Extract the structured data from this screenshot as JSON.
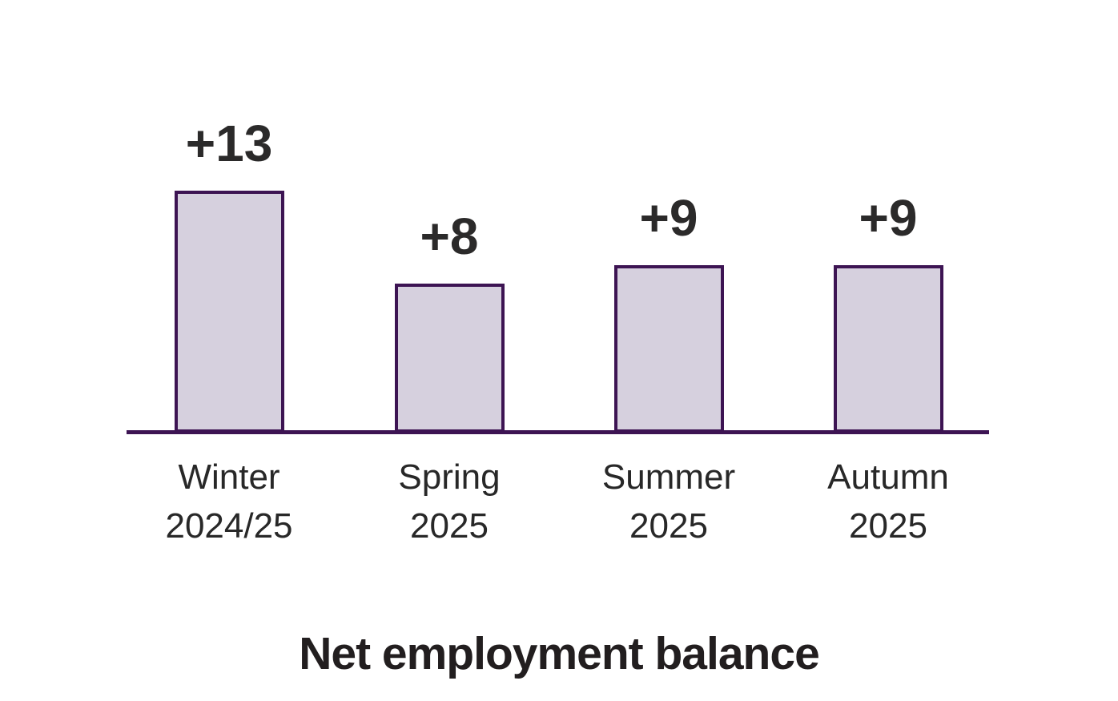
{
  "chart_data": {
    "type": "bar",
    "categories": [
      "Winter\n2024/25",
      "Spring\n2025",
      "Summer\n2025",
      "Autumn\n2025"
    ],
    "values": [
      13,
      8,
      9,
      9
    ],
    "value_labels": [
      "+13",
      "+8",
      "+9",
      "+9"
    ],
    "title": "Net employment balance",
    "xlabel": "",
    "ylabel": "",
    "ylim": [
      0,
      13
    ],
    "grid": false,
    "legend": false,
    "axis_visible": "x-only",
    "colors": {
      "bar_fill": "#d6d0de",
      "bar_border": "#3d1453",
      "axis_line": "#3d1453",
      "value_label_text": "#2b2a2a",
      "category_label_text": "#282828",
      "title_text": "#221e1f",
      "background": "#ffffff"
    }
  }
}
